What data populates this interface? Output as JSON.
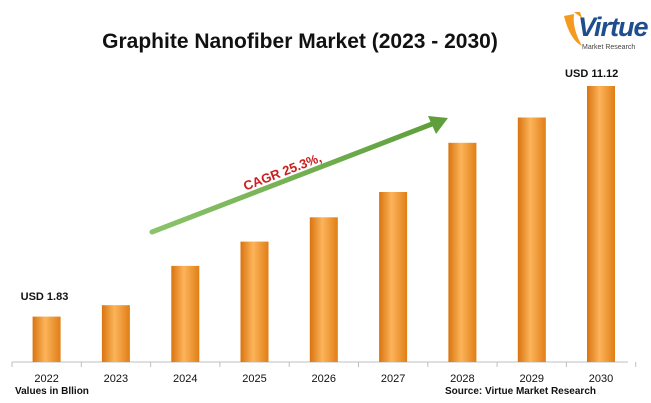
{
  "chart_data": {
    "type": "bar",
    "title": "Graphite Nanofiber Market (2023 - 2030)",
    "categories": [
      "2022",
      "2023",
      "2024",
      "2025",
      "2026",
      "2027",
      "2028",
      "2029",
      "2030"
    ],
    "values": [
      1.83,
      2.29,
      3.87,
      4.85,
      5.83,
      6.85,
      8.83,
      9.85,
      11.12
    ],
    "ylim": [
      0,
      11.12
    ],
    "bar_color": "#f59b23",
    "first_label": "USD 1.83",
    "last_label": "USD 11.12",
    "cagr_label": "CAGR 25.3%,",
    "cagr_color": "#cc1c1c",
    "arrow_color": "#6fae4a",
    "unit_note": "Values in Bllion",
    "source_note": "Source: Virtue Market Research",
    "grid": false
  },
  "logo": {
    "word": "Virtue",
    "subtitle": "Market Research"
  }
}
